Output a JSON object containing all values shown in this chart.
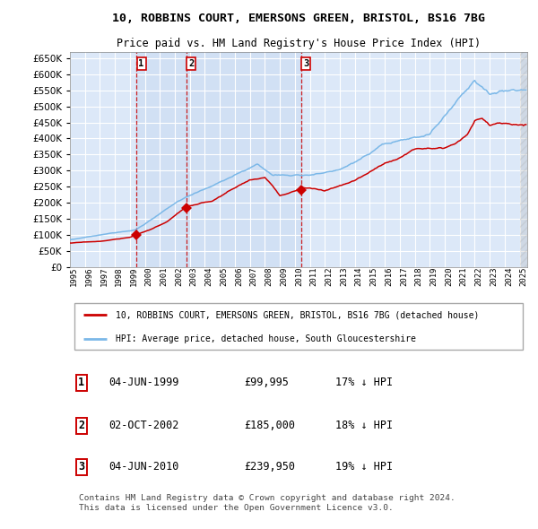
{
  "title": "10, ROBBINS COURT, EMERSONS GREEN, BRISTOL, BS16 7BG",
  "subtitle": "Price paid vs. HM Land Registry's House Price Index (HPI)",
  "ylim": [
    0,
    670000
  ],
  "yticks": [
    0,
    50000,
    100000,
    150000,
    200000,
    250000,
    300000,
    350000,
    400000,
    450000,
    500000,
    550000,
    600000,
    650000
  ],
  "xlim_start": 1995.0,
  "xlim_end": 2025.5,
  "sale_dates": [
    1999.42,
    2002.75,
    2010.42
  ],
  "sale_prices": [
    99995,
    185000,
    239950
  ],
  "sale_labels": [
    "1",
    "2",
    "3"
  ],
  "legend_line1": "10, ROBBINS COURT, EMERSONS GREEN, BRISTOL, BS16 7BG (detached house)",
  "legend_line2": "HPI: Average price, detached house, South Gloucestershire",
  "table_rows": [
    [
      "1",
      "04-JUN-1999",
      "£99,995",
      "17% ↓ HPI"
    ],
    [
      "2",
      "02-OCT-2002",
      "£185,000",
      "18% ↓ HPI"
    ],
    [
      "3",
      "04-JUN-2010",
      "£239,950",
      "19% ↓ HPI"
    ]
  ],
  "footer": "Contains HM Land Registry data © Crown copyright and database right 2024.\nThis data is licensed under the Open Government Licence v3.0.",
  "hpi_color": "#7bb8e8",
  "price_color": "#cc0000",
  "plot_bg": "#dce8f8",
  "grid_color": "#ffffff",
  "vline_color": "#cc0000",
  "marker_color": "#cc0000",
  "shaded_color": "#c5d8f0",
  "hatch_color": "#b0b0b0"
}
